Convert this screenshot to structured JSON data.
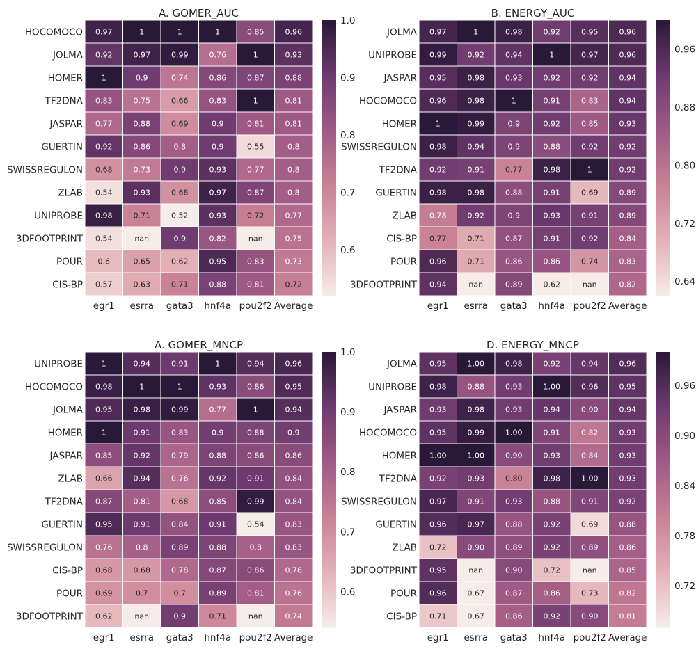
{
  "colormap": [
    "#f7ece8",
    "#e4b2b7",
    "#c98196",
    "#a05a85",
    "#6e3a6f",
    "#2a1839"
  ],
  "nan_color": "#f7ece8",
  "chart_data": [
    {
      "type": "heatmap",
      "title": "A.  GOMER_AUC",
      "columns": [
        "egr1",
        "esrra",
        "gata3",
        "hnf4a",
        "pou2f2",
        "Average"
      ],
      "rows": [
        "HOCOMOCO",
        "JOLMA",
        "HOMER",
        "TF2DNA",
        "JASPAR",
        "GUERTIN",
        "SWISSREGULON",
        "ZLAB",
        "UNIPROBE",
        "3DFOOTPRINT",
        "POUR",
        "CIS-BP"
      ],
      "values": [
        [
          0.97,
          1,
          1,
          1,
          0.85,
          0.96
        ],
        [
          0.92,
          0.97,
          0.99,
          0.76,
          1,
          0.93
        ],
        [
          1,
          0.9,
          0.74,
          0.86,
          0.87,
          0.88
        ],
        [
          0.83,
          0.75,
          0.66,
          0.83,
          1,
          0.81
        ],
        [
          0.77,
          0.88,
          0.69,
          0.9,
          0.81,
          0.81
        ],
        [
          0.92,
          0.86,
          0.8,
          0.9,
          0.55,
          0.8
        ],
        [
          0.68,
          0.73,
          0.9,
          0.93,
          0.77,
          0.8
        ],
        [
          0.54,
          0.93,
          0.68,
          0.97,
          0.87,
          0.8
        ],
        [
          0.98,
          0.71,
          0.52,
          0.93,
          0.72,
          0.77
        ],
        [
          0.54,
          null,
          0.9,
          0.82,
          null,
          0.75
        ],
        [
          0.6,
          0.65,
          0.62,
          0.95,
          0.83,
          0.73
        ],
        [
          0.57,
          0.63,
          0.71,
          0.88,
          0.81,
          0.72
        ]
      ],
      "cell_labels": [
        [
          "0.97",
          "1",
          "1",
          "1",
          "0.85",
          "0.96"
        ],
        [
          "0.92",
          "0.97",
          "0.99",
          "0.76",
          "1",
          "0.93"
        ],
        [
          "1",
          "0.9",
          "0.74",
          "0.86",
          "0.87",
          "0.88"
        ],
        [
          "0.83",
          "0.75",
          "0.66",
          "0.83",
          "1",
          "0.81"
        ],
        [
          "0.77",
          "0.88",
          "0.69",
          "0.9",
          "0.81",
          "0.81"
        ],
        [
          "0.92",
          "0.86",
          "0.8",
          "0.9",
          "0.55",
          "0.8"
        ],
        [
          "0.68",
          "0.73",
          "0.9",
          "0.93",
          "0.77",
          "0.8"
        ],
        [
          "0.54",
          "0.93",
          "0.68",
          "0.97",
          "0.87",
          "0.8"
        ],
        [
          "0.98",
          "0.71",
          "0.52",
          "0.93",
          "0.72",
          "0.77"
        ],
        [
          "0.54",
          "nan",
          "0.9",
          "0.82",
          "nan",
          "0.75"
        ],
        [
          "0.6",
          "0.65",
          "0.62",
          "0.95",
          "0.83",
          "0.73"
        ],
        [
          "0.57",
          "0.63",
          "0.71",
          "0.88",
          "0.81",
          "0.72"
        ]
      ],
      "vmin": 0.52,
      "vmax": 1.0,
      "colorbar_ticks": [
        {
          "value": 1.0,
          "label": "1.0"
        },
        {
          "value": 0.9,
          "label": "0.9"
        },
        {
          "value": 0.8,
          "label": "0.8"
        },
        {
          "value": 0.7,
          "label": "0.7"
        },
        {
          "value": 0.6,
          "label": "0.6"
        }
      ]
    },
    {
      "type": "heatmap",
      "title": "B.  ENERGY_AUC",
      "columns": [
        "egr1",
        "esrra",
        "gata3",
        "hnf4a",
        "pou2f2",
        "Average"
      ],
      "rows": [
        "JOLMA",
        "UNIPROBE",
        "JASPAR",
        "HOCOMOCO",
        "HOMER",
        "SWISSREGULON",
        "TF2DNA",
        "GUERTIN",
        "ZLAB",
        "CIS-BP",
        "POUR",
        "3DFOOTPRINT"
      ],
      "values": [
        [
          0.97,
          1,
          0.98,
          0.92,
          0.95,
          0.96
        ],
        [
          0.99,
          0.92,
          0.94,
          1,
          0.97,
          0.96
        ],
        [
          0.95,
          0.98,
          0.93,
          0.92,
          0.92,
          0.94
        ],
        [
          0.96,
          0.98,
          1,
          0.91,
          0.83,
          0.94
        ],
        [
          1,
          0.99,
          0.9,
          0.92,
          0.85,
          0.93
        ],
        [
          0.98,
          0.94,
          0.9,
          0.88,
          0.92,
          0.92
        ],
        [
          0.92,
          0.91,
          0.77,
          0.98,
          1,
          0.92
        ],
        [
          0.98,
          0.98,
          0.88,
          0.91,
          0.69,
          0.89
        ],
        [
          0.78,
          0.92,
          0.9,
          0.93,
          0.91,
          0.89
        ],
        [
          0.77,
          0.71,
          0.87,
          0.91,
          0.92,
          0.84
        ],
        [
          0.96,
          0.71,
          0.86,
          0.86,
          0.74,
          0.83
        ],
        [
          0.94,
          null,
          0.89,
          0.62,
          null,
          0.82
        ]
      ],
      "cell_labels": [
        [
          "0.97",
          "1",
          "0.98",
          "0.92",
          "0.95",
          "0.96"
        ],
        [
          "0.99",
          "0.92",
          "0.94",
          "1",
          "0.97",
          "0.96"
        ],
        [
          "0.95",
          "0.98",
          "0.93",
          "0.92",
          "0.92",
          "0.94"
        ],
        [
          "0.96",
          "0.98",
          "1",
          "0.91",
          "0.83",
          "0.94"
        ],
        [
          "1",
          "0.99",
          "0.9",
          "0.92",
          "0.85",
          "0.93"
        ],
        [
          "0.98",
          "0.94",
          "0.9",
          "0.88",
          "0.92",
          "0.92"
        ],
        [
          "0.92",
          "0.91",
          "0.77",
          "0.98",
          "1",
          "0.92"
        ],
        [
          "0.98",
          "0.98",
          "0.88",
          "0.91",
          "0.69",
          "0.89"
        ],
        [
          "0.78",
          "0.92",
          "0.9",
          "0.93",
          "0.91",
          "0.89"
        ],
        [
          "0.77",
          "0.71",
          "0.87",
          "0.91",
          "0.92",
          "0.84"
        ],
        [
          "0.96",
          "0.71",
          "0.86",
          "0.86",
          "0.74",
          "0.83"
        ],
        [
          "0.94",
          "nan",
          "0.89",
          "0.62",
          "nan",
          "0.82"
        ]
      ],
      "vmin": 0.62,
      "vmax": 1.0,
      "colorbar_ticks": [
        {
          "value": 0.96,
          "label": "0.96"
        },
        {
          "value": 0.88,
          "label": "0.88"
        },
        {
          "value": 0.8,
          "label": "0.80"
        },
        {
          "value": 0.72,
          "label": "0.72"
        },
        {
          "value": 0.64,
          "label": "0.64"
        }
      ]
    },
    {
      "type": "heatmap",
      "title": "A.  GOMER_MNCP",
      "columns": [
        "egr1",
        "esrra",
        "gata3",
        "hnf4a",
        "pou2f2",
        "Average"
      ],
      "rows": [
        "UNIPROBE",
        "HOCOMOCO",
        "JOLMA",
        "HOMER",
        "JASPAR",
        "ZLAB",
        "TF2DNA",
        "GUERTIN",
        "SWISSREGULON",
        "CIS-BP",
        "POUR",
        "3DFOOTPRINT"
      ],
      "values": [
        [
          1,
          0.94,
          0.91,
          1,
          0.94,
          0.96
        ],
        [
          0.98,
          1,
          1,
          0.93,
          0.86,
          0.95
        ],
        [
          0.95,
          0.98,
          0.99,
          0.77,
          1,
          0.94
        ],
        [
          1,
          0.91,
          0.83,
          0.9,
          0.88,
          0.9
        ],
        [
          0.85,
          0.92,
          0.79,
          0.88,
          0.86,
          0.86
        ],
        [
          0.66,
          0.94,
          0.76,
          0.92,
          0.91,
          0.84
        ],
        [
          0.87,
          0.81,
          0.68,
          0.85,
          0.99,
          0.84
        ],
        [
          0.95,
          0.91,
          0.84,
          0.91,
          0.54,
          0.83
        ],
        [
          0.76,
          0.8,
          0.89,
          0.88,
          0.8,
          0.83
        ],
        [
          0.68,
          0.68,
          0.78,
          0.87,
          0.86,
          0.78
        ],
        [
          0.69,
          0.7,
          0.7,
          0.89,
          0.81,
          0.76
        ],
        [
          0.62,
          null,
          0.9,
          0.71,
          null,
          0.74
        ]
      ],
      "cell_labels": [
        [
          "1",
          "0.94",
          "0.91",
          "1",
          "0.94",
          "0.96"
        ],
        [
          "0.98",
          "1",
          "1",
          "0.93",
          "0.86",
          "0.95"
        ],
        [
          "0.95",
          "0.98",
          "0.99",
          "0.77",
          "1",
          "0.94"
        ],
        [
          "1",
          "0.91",
          "0.83",
          "0.9",
          "0.88",
          "0.9"
        ],
        [
          "0.85",
          "0.92",
          "0.79",
          "0.88",
          "0.86",
          "0.86"
        ],
        [
          "0.66",
          "0.94",
          "0.76",
          "0.92",
          "0.91",
          "0.84"
        ],
        [
          "0.87",
          "0.81",
          "0.68",
          "0.85",
          "0.99",
          "0.84"
        ],
        [
          "0.95",
          "0.91",
          "0.84",
          "0.91",
          "0.54",
          "0.83"
        ],
        [
          "0.76",
          "0.8",
          "0.89",
          "0.88",
          "0.8",
          "0.83"
        ],
        [
          "0.68",
          "0.68",
          "0.78",
          "0.87",
          "0.86",
          "0.78"
        ],
        [
          "0.69",
          "0.7",
          "0.7",
          "0.89",
          "0.81",
          "0.76"
        ],
        [
          "0.62",
          "nan",
          "0.9",
          "0.71",
          "nan",
          "0.74"
        ]
      ],
      "vmin": 0.54,
      "vmax": 1.0,
      "colorbar_ticks": [
        {
          "value": 1.0,
          "label": "1.0"
        },
        {
          "value": 0.9,
          "label": "0.9"
        },
        {
          "value": 0.8,
          "label": "0.8"
        },
        {
          "value": 0.7,
          "label": "0.7"
        },
        {
          "value": 0.6,
          "label": "0.6"
        }
      ]
    },
    {
      "type": "heatmap",
      "title": "D.  ENERGY_MNCP",
      "columns": [
        "egr1",
        "esrra",
        "gata3",
        "hnf4a",
        "pou2f2",
        "Average"
      ],
      "rows": [
        "JOLMA",
        "UNIPROBE",
        "JASPAR",
        "HOCOMOCO",
        "HOMER",
        "TF2DNA",
        "SWISSREGULON",
        "GUERTIN",
        "ZLAB",
        "3DFOOTPRINT",
        "POUR",
        "CIS-BP"
      ],
      "values": [
        [
          0.95,
          1.0,
          0.98,
          0.92,
          0.94,
          0.96
        ],
        [
          0.98,
          0.88,
          0.93,
          1.0,
          0.96,
          0.95
        ],
        [
          0.93,
          0.98,
          0.93,
          0.94,
          0.9,
          0.94
        ],
        [
          0.95,
          0.99,
          1.0,
          0.91,
          0.82,
          0.93
        ],
        [
          1.0,
          1.0,
          0.9,
          0.93,
          0.84,
          0.93
        ],
        [
          0.92,
          0.93,
          0.8,
          0.98,
          1.0,
          0.93
        ],
        [
          0.97,
          0.91,
          0.93,
          0.88,
          0.91,
          0.92
        ],
        [
          0.96,
          0.97,
          0.88,
          0.92,
          0.69,
          0.88
        ],
        [
          0.72,
          0.9,
          0.89,
          0.92,
          0.89,
          0.86
        ],
        [
          0.95,
          null,
          0.9,
          0.72,
          null,
          0.85
        ],
        [
          0.96,
          0.67,
          0.87,
          0.86,
          0.73,
          0.82
        ],
        [
          0.71,
          0.67,
          0.86,
          0.92,
          0.9,
          0.81
        ]
      ],
      "cell_labels": [
        [
          "0.95",
          "1.00",
          "0.98",
          "0.92",
          "0.94",
          "0.96"
        ],
        [
          "0.98",
          "0.88",
          "0.93",
          "1.00",
          "0.96",
          "0.95"
        ],
        [
          "0.93",
          "0.98",
          "0.93",
          "0.94",
          "0.90",
          "0.94"
        ],
        [
          "0.95",
          "0.99",
          "1.00",
          "0.91",
          "0.82",
          "0.93"
        ],
        [
          "1.00",
          "1.00",
          "0.90",
          "0.93",
          "0.84",
          "0.93"
        ],
        [
          "0.92",
          "0.93",
          "0.80",
          "0.98",
          "1.00",
          "0.93"
        ],
        [
          "0.97",
          "0.91",
          "0.93",
          "0.88",
          "0.91",
          "0.92"
        ],
        [
          "0.96",
          "0.97",
          "0.88",
          "0.92",
          "0.69",
          "0.88"
        ],
        [
          "0.72",
          "0.90",
          "0.89",
          "0.92",
          "0.89",
          "0.86"
        ],
        [
          "0.95",
          "nan",
          "0.90",
          "0.72",
          "nan",
          "0.85"
        ],
        [
          "0.96",
          "0.67",
          "0.87",
          "0.86",
          "0.73",
          "0.82"
        ],
        [
          "0.71",
          "0.67",
          "0.86",
          "0.92",
          "0.90",
          "0.81"
        ]
      ],
      "vmin": 0.67,
      "vmax": 1.0,
      "colorbar_ticks": [
        {
          "value": 0.96,
          "label": "0.96"
        },
        {
          "value": 0.9,
          "label": "0.90"
        },
        {
          "value": 0.84,
          "label": "0.84"
        },
        {
          "value": 0.78,
          "label": "0.78"
        },
        {
          "value": 0.72,
          "label": "0.72"
        }
      ]
    }
  ]
}
